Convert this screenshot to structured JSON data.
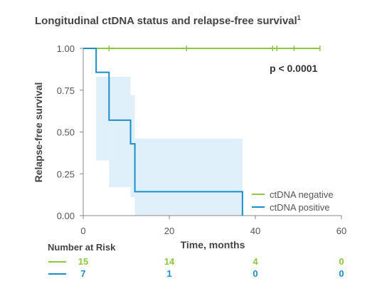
{
  "chart_data": {
    "type": "line",
    "title": "Longitudinal ctDNA status and relapse-free survival",
    "title_sup": "1",
    "xlabel": "Time, months",
    "ylabel": "Relapse-free survival",
    "xlim": [
      0,
      60
    ],
    "ylim": [
      0,
      1
    ],
    "xticks": [
      0,
      20,
      40,
      60
    ],
    "yticks": [
      0.0,
      0.25,
      0.5,
      0.75,
      1.0
    ],
    "ytick_labels": [
      "0.00",
      "0.25",
      "0.50",
      "0.75",
      "1.00"
    ],
    "grid": false,
    "legend_position": "bottom-right",
    "annotation": "p < 0.0001",
    "series": [
      {
        "name": "ctDNA negative",
        "color": "#8dc63f",
        "step": [
          [
            0,
            1.0
          ],
          [
            55,
            1.0
          ]
        ],
        "censor": [
          6,
          24,
          44,
          45,
          49,
          55
        ]
      },
      {
        "name": "ctDNA positive",
        "color": "#1a8fc9",
        "step": [
          [
            0,
            1.0
          ],
          [
            3,
            0.857
          ],
          [
            6,
            0.571
          ],
          [
            11,
            0.429
          ],
          [
            12,
            0.143
          ],
          [
            37,
            0.0
          ]
        ],
        "ci_color": "#dff0fb",
        "ci": [
          [
            3,
            6,
            0.33,
            0.83
          ],
          [
            6,
            11,
            0.17,
            0.83
          ],
          [
            11,
            12,
            0.11,
            0.72
          ],
          [
            12,
            37,
            0.0,
            0.46
          ]
        ]
      }
    ],
    "risk_table": {
      "title": "Number at Risk",
      "rows": [
        {
          "series": "ctDNA negative",
          "color": "#8dc63f",
          "values": [
            "15",
            "14",
            "4",
            "0"
          ]
        },
        {
          "series": "ctDNA positive",
          "color": "#1a8fc9",
          "values": [
            "7",
            "1",
            "0",
            "0"
          ]
        }
      ]
    }
  }
}
